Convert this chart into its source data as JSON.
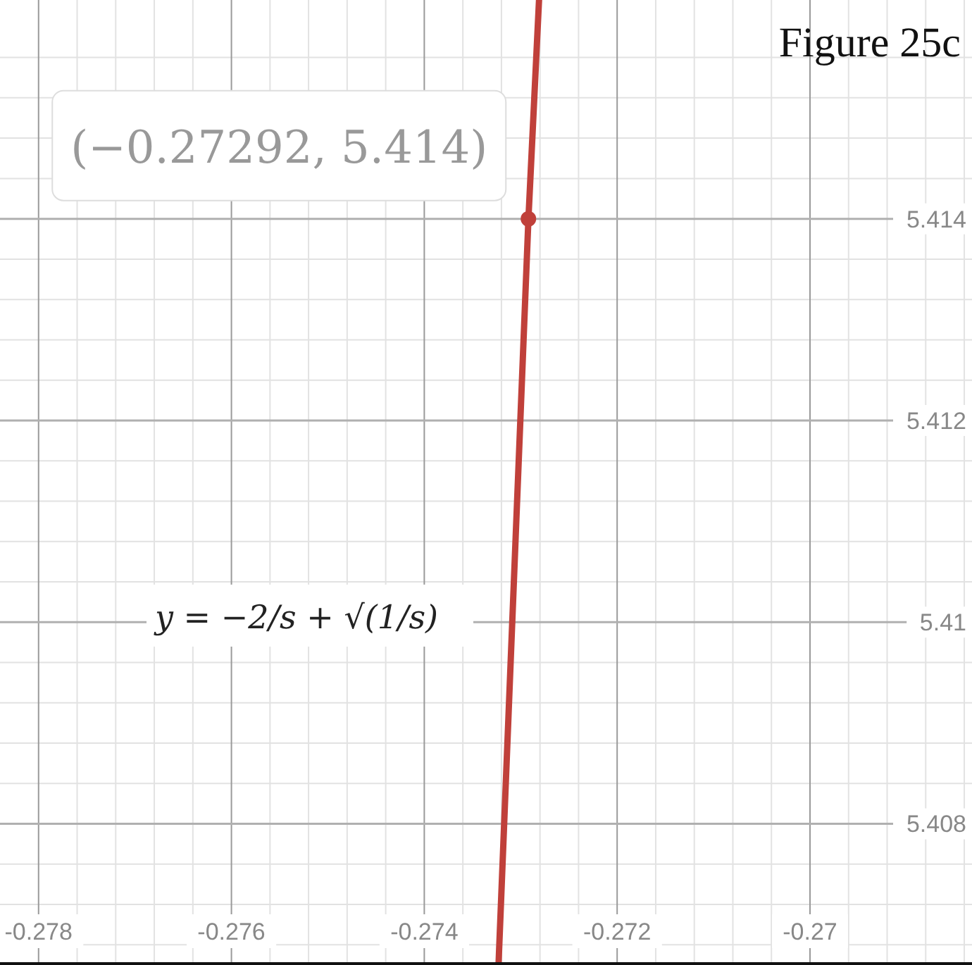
{
  "chart_data": {
    "type": "line",
    "title": "Figure 25c",
    "xlim": [
      -0.2784,
      -0.26832
    ],
    "ylim": [
      5.4066,
      5.41617
    ],
    "xticks": [
      -0.278,
      -0.276,
      -0.274,
      -0.272,
      -0.27
    ],
    "yticks": [
      5.408,
      5.41,
      5.412,
      5.414
    ],
    "grid": true,
    "series": [
      {
        "color": "#c0403a",
        "x": [
          -0.27323,
          -0.27292,
          -0.27281
        ],
        "values": [
          5.4066,
          5.414,
          5.41617
        ],
        "marker": "none",
        "line_style": "solid"
      },
      {
        "type": "scatter",
        "color": "#c0403a",
        "x": [
          -0.27292
        ],
        "values": [
          5.414
        ],
        "marker": "circle"
      }
    ],
    "annotations": [
      {
        "text": "(−0.27292, 5.414)",
        "x": -0.27292,
        "y": 5.414
      },
      "y = −2/s + √(1/s)"
    ]
  }
}
